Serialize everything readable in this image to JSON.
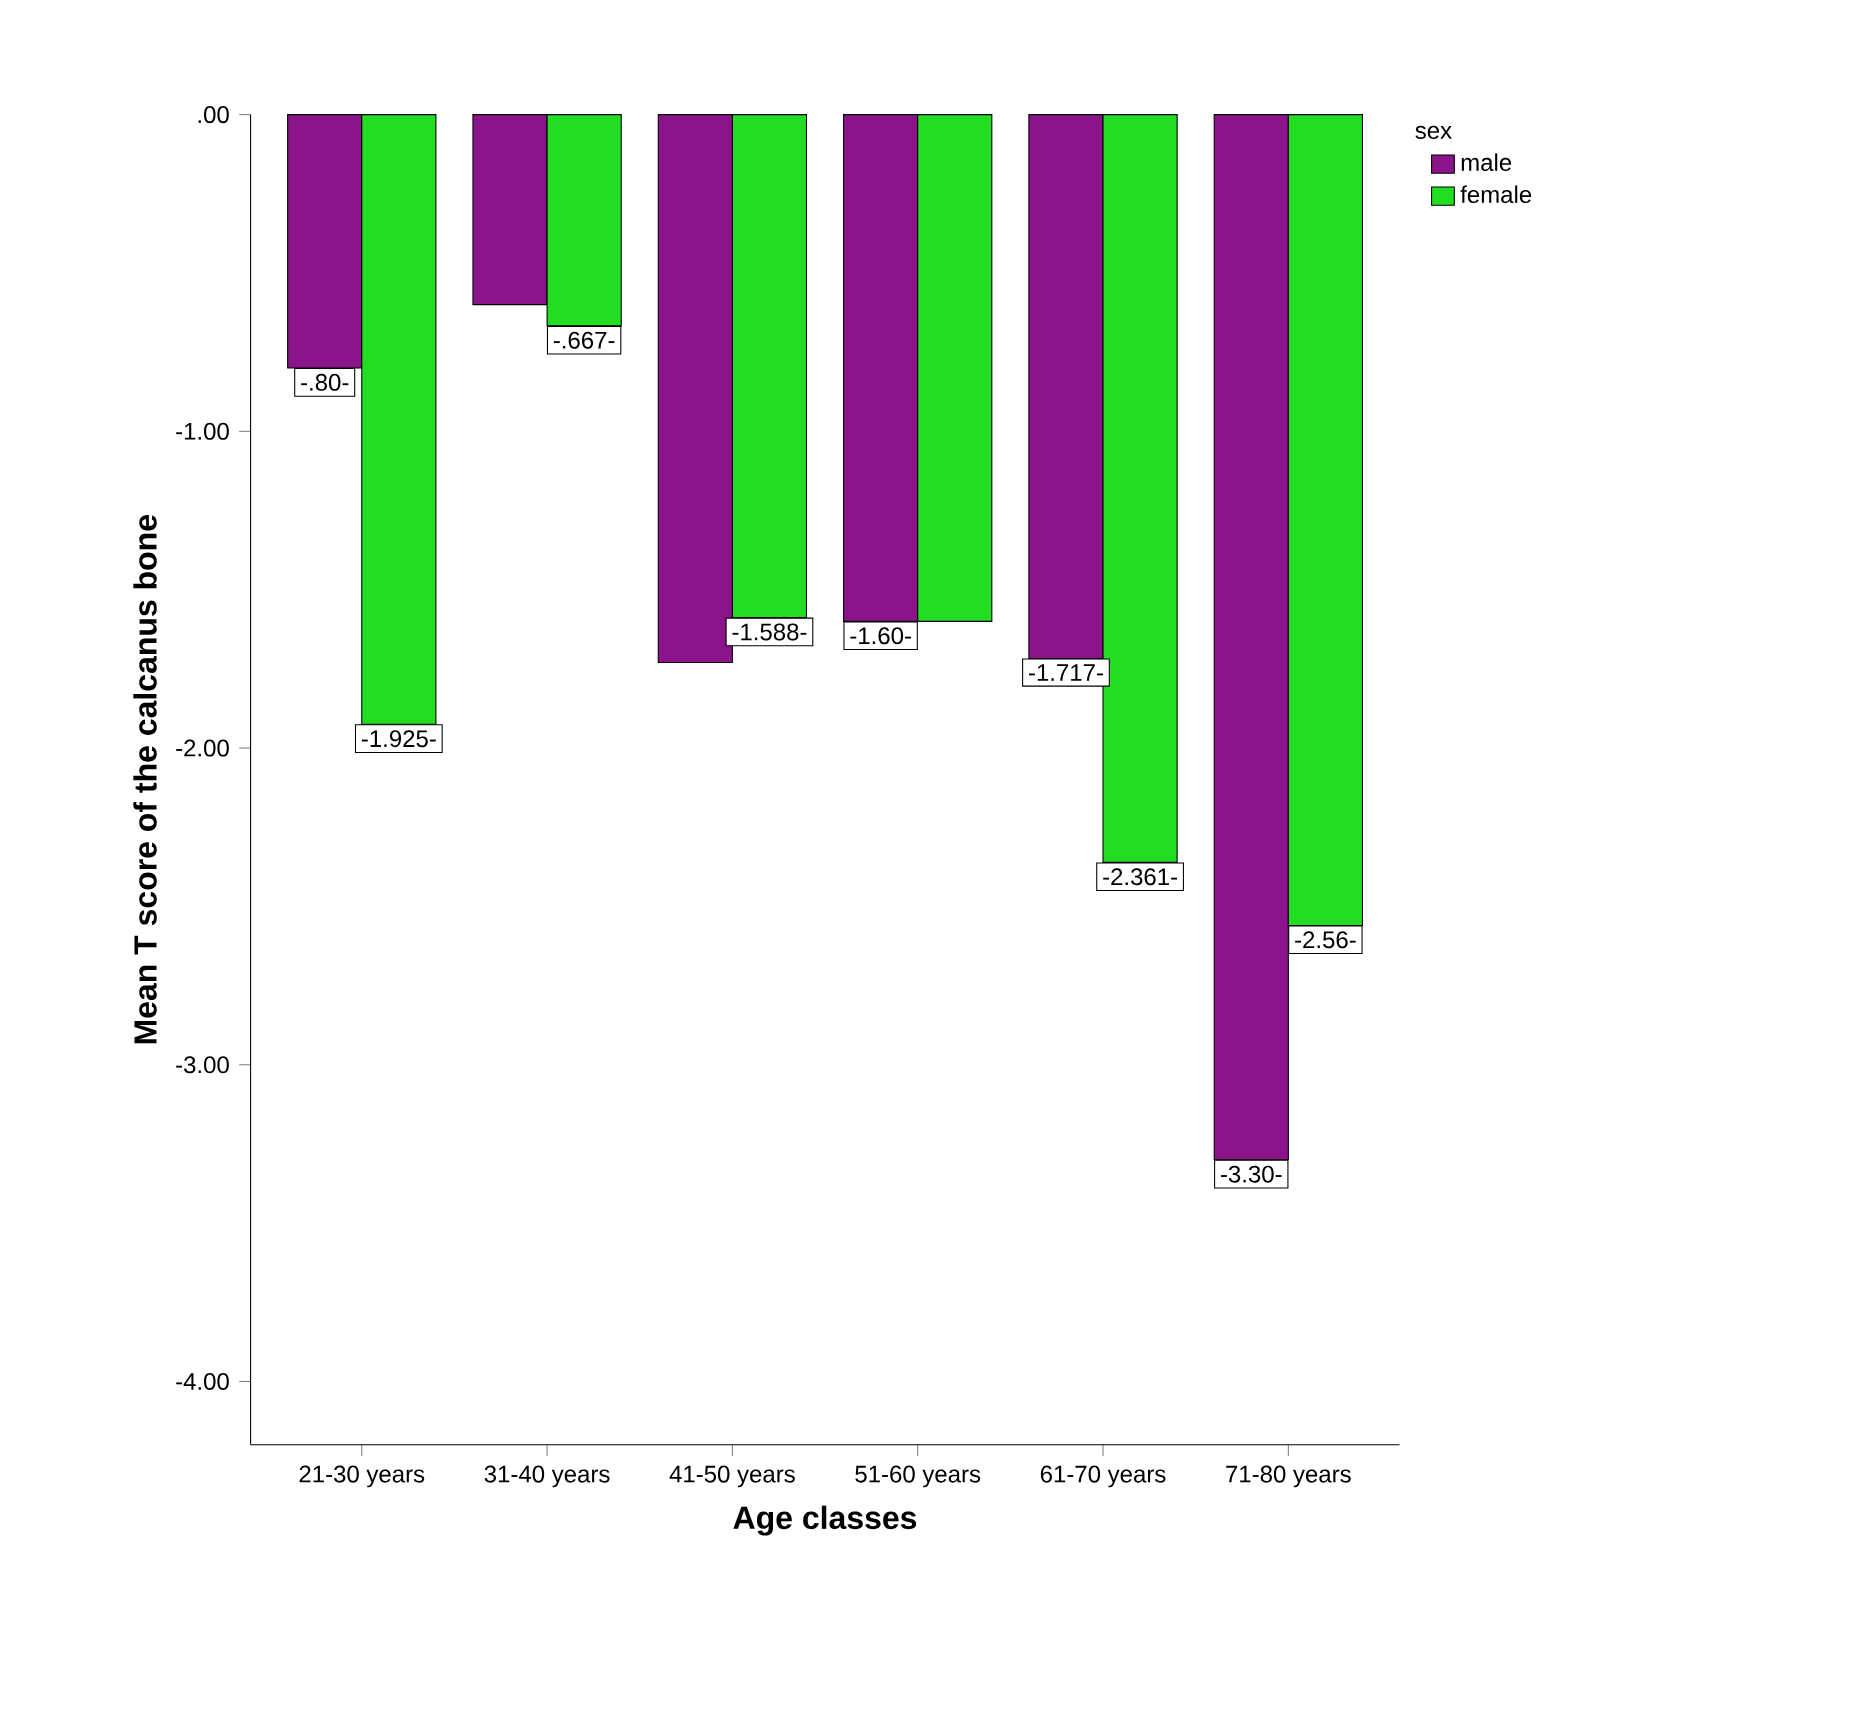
{
  "chart_data": {
    "type": "bar",
    "xlabel": "Age classes",
    "ylabel": "Mean T score of the calcanus bone",
    "legend_title": "sex",
    "legend": "top right",
    "categories": [
      "21-30 years",
      "31-40 years",
      "41-50 years",
      "51-60 years",
      "61-70 years",
      "71-80 years"
    ],
    "series": [
      {
        "name": "male",
        "color": "#8b148b",
        "values": [
          -0.8,
          -0.6,
          -1.73,
          -1.6,
          -1.717,
          -3.3
        ],
        "value_labels": [
          "-.80-",
          null,
          null,
          "-1.60-",
          "-1.717-",
          "-3.30-"
        ]
      },
      {
        "name": "female",
        "color": "#22dd22",
        "values": [
          -1.925,
          -0.667,
          -1.588,
          -1.6,
          -2.361,
          -2.56
        ],
        "value_labels": [
          "-1.925-",
          "-.667-",
          "-1.588-",
          null,
          "-2.361-",
          "-2.56-"
        ]
      }
    ],
    "ylim": [
      -4.2,
      0
    ],
    "yticks": [
      {
        "value": 0,
        "label": ".00"
      },
      {
        "value": -1,
        "label": "-1.00"
      },
      {
        "value": -2,
        "label": "-2.00"
      },
      {
        "value": -3,
        "label": "-3.00"
      },
      {
        "value": -4,
        "label": "-4.00"
      }
    ]
  }
}
